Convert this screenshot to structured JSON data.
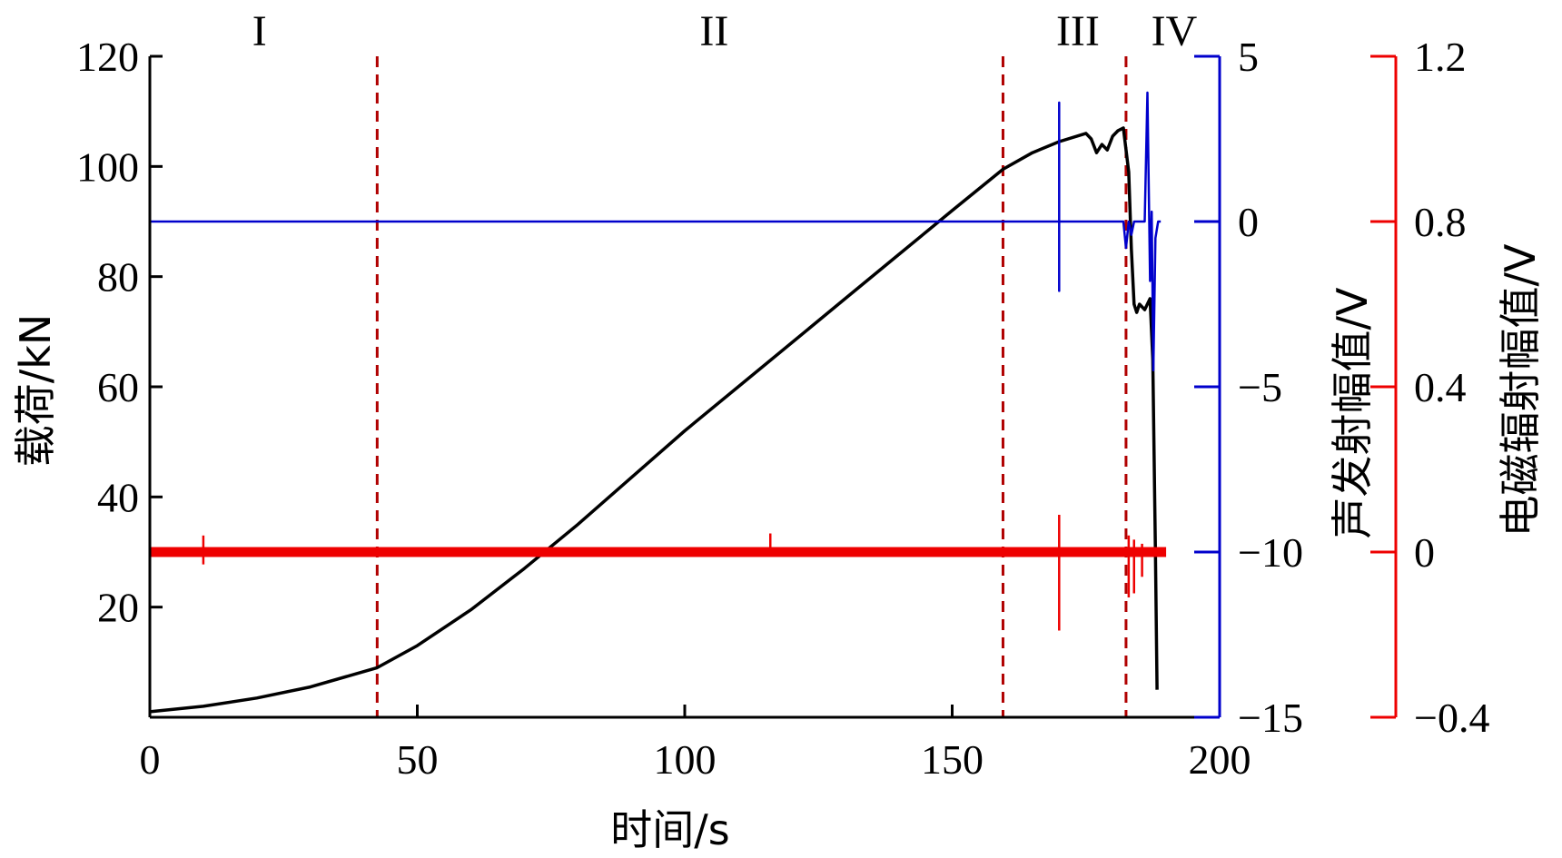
{
  "chart_data": {
    "type": "line",
    "x_axis": {
      "label": "时间/s",
      "ticks": [
        0,
        50,
        100,
        150,
        200
      ],
      "range": [
        0,
        200
      ]
    },
    "y_axes": [
      {
        "id": "load",
        "label": "载荷/kN",
        "ticks": [
          20,
          40,
          60,
          80,
          100,
          120
        ],
        "range": [
          0,
          120
        ],
        "color": "#000000",
        "side": "left"
      },
      {
        "id": "ae",
        "label": "声发射幅值/V",
        "ticks": [
          "5",
          "0",
          "−5",
          "−10",
          "−15"
        ],
        "tick_values": [
          5,
          0,
          -5,
          -10,
          -15
        ],
        "range": [
          -15,
          5
        ],
        "color": "#0000cc",
        "side": "right"
      },
      {
        "id": "em",
        "label": "电磁辐射幅值/V",
        "ticks": [
          "1.2",
          "0.8",
          "0.4",
          "0",
          "−0.4"
        ],
        "tick_values": [
          1.2,
          0.8,
          0.4,
          0,
          -0.4
        ],
        "range": [
          -0.4,
          1.2
        ],
        "color": "#ee0000",
        "side": "right"
      }
    ],
    "stages": {
      "labels": [
        "I",
        "II",
        "III",
        "IV"
      ],
      "label_x": [
        20.5,
        105.5,
        173.5,
        191.5
      ],
      "boundaries": [
        42.5,
        159.5,
        182.5
      ]
    },
    "series": [
      {
        "axis": "load",
        "color": "#000000",
        "x": [
          0,
          10,
          20,
          30,
          42.5,
          50,
          60,
          70,
          80,
          90,
          100,
          110,
          120,
          130,
          140,
          150,
          159.5,
          165,
          170,
          175,
          176,
          177,
          178,
          179,
          180,
          181,
          182,
          183,
          183.5,
          184,
          184.5,
          185,
          186,
          187,
          187.5,
          188,
          188.3
        ],
        "y": [
          1,
          2,
          3.5,
          5.5,
          9,
          13,
          19.5,
          27,
          35,
          43.5,
          52,
          60,
          68,
          76,
          84,
          92,
          99.5,
          102.5,
          104.5,
          106,
          105,
          102.5,
          104,
          103,
          105.5,
          106.5,
          107,
          99,
          85,
          75,
          73.5,
          75,
          74,
          76,
          65,
          30,
          5
        ]
      },
      {
        "axis": "ae",
        "color": "#0000cc",
        "x": [
          0,
          170,
          170,
          170,
          170,
          170,
          182,
          182.5,
          183,
          183.5,
          184,
          184.5,
          186,
          186.5,
          187,
          187.3,
          187.6,
          188,
          188.5,
          189
        ],
        "y": [
          0,
          0,
          3.6,
          -2.1,
          0,
          0,
          0,
          -0.8,
          0,
          -0.4,
          0,
          0,
          0,
          3.9,
          -1.8,
          0.3,
          -4.5,
          -0.5,
          0,
          0
        ]
      },
      {
        "axis": "em",
        "color": "#ee0000",
        "band_half_width": 0.012,
        "x_range": [
          0,
          190
        ],
        "spikes": [
          {
            "x": 10,
            "y_max": 0.04,
            "y_min": -0.03
          },
          {
            "x": 116,
            "y_max": 0.045,
            "y_min": -0.01
          },
          {
            "x": 170,
            "y_max": 0.09,
            "y_min": -0.19
          },
          {
            "x": 183,
            "y_max": 0.04,
            "y_min": -0.11
          },
          {
            "x": 184,
            "y_max": 0.03,
            "y_min": -0.1
          },
          {
            "x": 185.5,
            "y_max": 0.02,
            "y_min": -0.06
          }
        ]
      }
    ]
  }
}
